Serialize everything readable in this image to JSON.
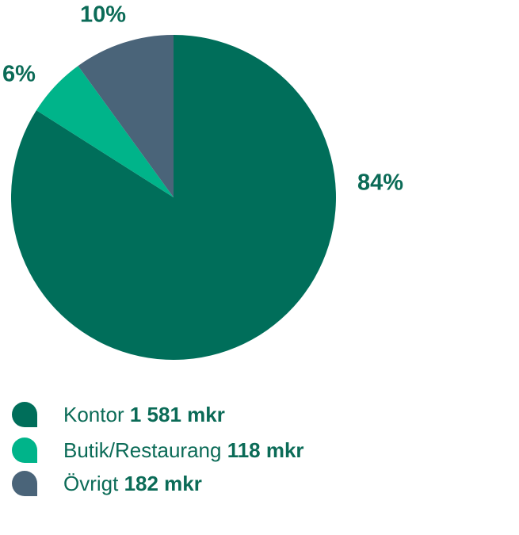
{
  "chart_data": {
    "type": "pie",
    "categories": [
      "Kontor",
      "Butik/Restaurang",
      "Övrigt"
    ],
    "values": [
      84,
      6,
      10
    ],
    "value_labels": [
      "84%",
      "6%",
      "10%"
    ],
    "amount_labels": [
      "1 581 mkr",
      "118 mkr",
      "182 mkr"
    ],
    "colors": [
      "#006e5a",
      "#00b48a",
      "#4a6479"
    ]
  }
}
